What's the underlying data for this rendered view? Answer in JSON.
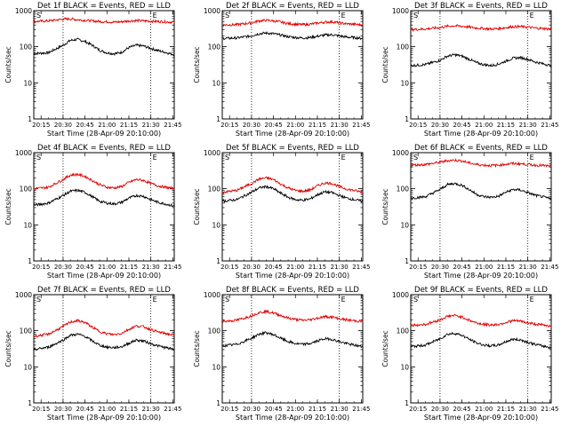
{
  "colors": {
    "events": "#000000",
    "lld": "#e00000",
    "axis": "#000000",
    "background": "#ffffff"
  },
  "chart_data": [
    {
      "type": "line",
      "title": "Det 1f BLACK = Events, RED = LLD",
      "xlabel": "Start Time (28-Apr-09 20:10:00)",
      "ylabel": "Counts/sec",
      "x_ticks": [
        "20:15",
        "20:30",
        "20:45",
        "21:00",
        "21:15",
        "21:30",
        "21:45"
      ],
      "x_range_minutes": [
        0,
        96
      ],
      "y_scale": "log",
      "ylim": [
        1,
        1000
      ],
      "y_ticks": [
        "1",
        "10",
        "100",
        "1000"
      ],
      "dotted_vlines_minutes": [
        20,
        80
      ],
      "corner_markers": [
        "S",
        "E"
      ],
      "x": [
        0,
        10,
        20,
        25,
        30,
        35,
        40,
        45,
        50,
        55,
        60,
        65,
        70,
        75,
        80,
        85,
        90,
        96
      ],
      "series": [
        {
          "name": "BLACK = Events",
          "color": "#000000",
          "values": [
            65,
            68,
            110,
            150,
            160,
            140,
            110,
            80,
            68,
            64,
            70,
            95,
            110,
            105,
            90,
            78,
            70,
            60
          ]
        },
        {
          "name": "RED = LLD",
          "color": "#e00000",
          "values": [
            500,
            520,
            580,
            590,
            560,
            540,
            520,
            500,
            490,
            480,
            490,
            520,
            530,
            520,
            510,
            500,
            490,
            480
          ]
        }
      ]
    },
    {
      "type": "line",
      "title": "Det 2f BLACK = Events, RED = LLD",
      "xlabel": "Start Time (28-Apr-09 20:10:00)",
      "ylabel": "Counts/sec",
      "x_ticks": [
        "20:15",
        "20:30",
        "20:45",
        "21:00",
        "21:15",
        "21:30",
        "21:45"
      ],
      "x_range_minutes": [
        0,
        96
      ],
      "y_scale": "log",
      "ylim": [
        1,
        1000
      ],
      "y_ticks": [
        "1",
        "10",
        "100",
        "1000"
      ],
      "dotted_vlines_minutes": [
        20,
        80
      ],
      "corner_markers": [
        "S",
        "E"
      ],
      "x": [
        0,
        10,
        20,
        25,
        30,
        35,
        40,
        45,
        50,
        55,
        60,
        65,
        70,
        75,
        80,
        85,
        90,
        96
      ],
      "series": [
        {
          "name": "BLACK = Events",
          "color": "#000000",
          "values": [
            170,
            175,
            200,
            230,
            240,
            230,
            210,
            190,
            180,
            175,
            180,
            195,
            210,
            215,
            200,
            185,
            180,
            170
          ]
        },
        {
          "name": "RED = LLD",
          "color": "#e00000",
          "values": [
            400,
            410,
            460,
            520,
            540,
            520,
            480,
            440,
            420,
            410,
            420,
            450,
            480,
            490,
            460,
            430,
            420,
            400
          ]
        }
      ]
    },
    {
      "type": "line",
      "title": "Det 3f BLACK = Events, RED = LLD",
      "xlabel": "Start Time (28-Apr-09 20:10:00)",
      "ylabel": "Counts/sec",
      "x_ticks": [
        "20:15",
        "20:30",
        "20:45",
        "21:00",
        "21:15",
        "21:30",
        "21:45"
      ],
      "x_range_minutes": [
        0,
        96
      ],
      "y_scale": "log",
      "ylim": [
        1,
        1000
      ],
      "y_ticks": [
        "1",
        "10",
        "100",
        "1000"
      ],
      "dotted_vlines_minutes": [
        20,
        80
      ],
      "corner_markers": [
        "S",
        "E"
      ],
      "x": [
        0,
        10,
        20,
        25,
        30,
        35,
        40,
        45,
        50,
        55,
        60,
        65,
        70,
        75,
        80,
        85,
        90,
        96
      ],
      "series": [
        {
          "name": "BLACK = Events",
          "color": "#000000",
          "values": [
            30,
            32,
            42,
            55,
            60,
            55,
            45,
            36,
            32,
            30,
            33,
            40,
            48,
            50,
            45,
            38,
            34,
            30
          ]
        },
        {
          "name": "RED = LLD",
          "color": "#e00000",
          "values": [
            300,
            310,
            340,
            370,
            380,
            370,
            350,
            330,
            320,
            310,
            320,
            340,
            360,
            360,
            350,
            330,
            320,
            310
          ]
        }
      ]
    },
    {
      "type": "line",
      "title": "Det 4f BLACK = Events, RED = LLD",
      "xlabel": "Start Time (28-Apr-09 20:10:00)",
      "ylabel": "Counts/sec",
      "x_ticks": [
        "20:15",
        "20:30",
        "20:45",
        "21:00",
        "21:15",
        "21:30",
        "21:45"
      ],
      "x_range_minutes": [
        0,
        96
      ],
      "y_scale": "log",
      "ylim": [
        1,
        1000
      ],
      "y_ticks": [
        "1",
        "10",
        "100",
        "1000"
      ],
      "dotted_vlines_minutes": [
        20,
        80
      ],
      "corner_markers": [
        "S",
        "E"
      ],
      "x": [
        0,
        10,
        20,
        25,
        30,
        35,
        40,
        45,
        50,
        55,
        60,
        65,
        70,
        75,
        80,
        85,
        90,
        96
      ],
      "series": [
        {
          "name": "BLACK = Events",
          "color": "#000000",
          "values": [
            35,
            40,
            65,
            85,
            90,
            80,
            60,
            45,
            40,
            38,
            42,
            55,
            65,
            62,
            50,
            42,
            38,
            33
          ]
        },
        {
          "name": "RED = LLD",
          "color": "#e00000",
          "values": [
            100,
            110,
            180,
            240,
            250,
            220,
            170,
            130,
            110,
            105,
            115,
            150,
            180,
            170,
            140,
            120,
            110,
            100
          ]
        }
      ]
    },
    {
      "type": "line",
      "title": "Det 5f BLACK = Events, RED = LLD",
      "xlabel": "Start Time (28-Apr-09 20:10:00)",
      "ylabel": "Counts/sec",
      "x_ticks": [
        "20:15",
        "20:30",
        "20:45",
        "21:00",
        "21:15",
        "21:30",
        "21:45"
      ],
      "x_range_minutes": [
        0,
        96
      ],
      "y_scale": "log",
      "ylim": [
        1,
        1000
      ],
      "y_ticks": [
        "1",
        "10",
        "100",
        "1000"
      ],
      "dotted_vlines_minutes": [
        20,
        80
      ],
      "corner_markers": [
        "S",
        "E"
      ],
      "x": [
        0,
        10,
        20,
        25,
        30,
        35,
        40,
        45,
        50,
        55,
        60,
        65,
        70,
        75,
        80,
        85,
        90,
        96
      ],
      "series": [
        {
          "name": "BLACK = Events",
          "color": "#000000",
          "values": [
            45,
            50,
            80,
            105,
            115,
            100,
            75,
            58,
            50,
            48,
            52,
            68,
            82,
            78,
            65,
            55,
            50,
            45
          ]
        },
        {
          "name": "RED = LLD",
          "color": "#e00000",
          "values": [
            80,
            90,
            140,
            185,
            200,
            180,
            135,
            105,
            90,
            85,
            92,
            120,
            145,
            140,
            115,
            98,
            90,
            80
          ]
        }
      ]
    },
    {
      "type": "line",
      "title": "Det 6f BLACK = Events, RED = LLD",
      "xlabel": "Start Time (28-Apr-09 20:10:00)",
      "ylabel": "Counts/sec",
      "x_ticks": [
        "20:15",
        "20:30",
        "20:45",
        "21:00",
        "21:15",
        "21:30",
        "21:45"
      ],
      "x_range_minutes": [
        0,
        96
      ],
      "y_scale": "log",
      "ylim": [
        1,
        1000
      ],
      "y_ticks": [
        "1",
        "10",
        "100",
        "1000"
      ],
      "dotted_vlines_minutes": [
        20,
        80
      ],
      "corner_markers": [
        "S",
        "E"
      ],
      "x": [
        0,
        10,
        20,
        25,
        30,
        35,
        40,
        45,
        50,
        55,
        60,
        65,
        70,
        75,
        80,
        85,
        90,
        96
      ],
      "series": [
        {
          "name": "BLACK = Events",
          "color": "#000000",
          "values": [
            55,
            60,
            95,
            130,
            140,
            125,
            95,
            70,
            60,
            58,
            62,
            80,
            95,
            92,
            78,
            66,
            60,
            52
          ]
        },
        {
          "name": "RED = LLD",
          "color": "#e00000",
          "values": [
            450,
            470,
            540,
            600,
            620,
            590,
            520,
            470,
            450,
            440,
            450,
            480,
            500,
            490,
            470,
            450,
            440,
            420
          ]
        }
      ]
    },
    {
      "type": "line",
      "title": "Det 7f BLACK = Events, RED = LLD",
      "xlabel": "Start Time (28-Apr-09 20:10:00)",
      "ylabel": "Counts/sec",
      "x_ticks": [
        "20:15",
        "20:30",
        "20:45",
        "21:00",
        "21:15",
        "21:30",
        "21:45"
      ],
      "x_range_minutes": [
        0,
        96
      ],
      "y_scale": "log",
      "ylim": [
        1,
        1000
      ],
      "y_ticks": [
        "1",
        "10",
        "100",
        "1000"
      ],
      "dotted_vlines_minutes": [
        20,
        80
      ],
      "corner_markers": [
        "S",
        "E"
      ],
      "x": [
        0,
        10,
        20,
        25,
        30,
        35,
        40,
        45,
        50,
        55,
        60,
        65,
        70,
        75,
        80,
        85,
        90,
        96
      ],
      "series": [
        {
          "name": "BLACK = Events",
          "color": "#000000",
          "values": [
            30,
            35,
            55,
            75,
            80,
            70,
            52,
            40,
            35,
            34,
            36,
            45,
            55,
            52,
            44,
            38,
            34,
            30
          ]
        },
        {
          "name": "RED = LLD",
          "color": "#e00000",
          "values": [
            70,
            80,
            130,
            175,
            190,
            170,
            125,
            95,
            82,
            78,
            85,
            110,
            135,
            130,
            108,
            92,
            84,
            75
          ]
        }
      ]
    },
    {
      "type": "line",
      "title": "Det 8f BLACK = Events, RED = LLD",
      "xlabel": "Start Time (28-Apr-09 20:10:00)",
      "ylabel": "Counts/sec",
      "x_ticks": [
        "20:15",
        "20:30",
        "20:45",
        "21:00",
        "21:15",
        "21:30",
        "21:45"
      ],
      "x_range_minutes": [
        0,
        96
      ],
      "y_scale": "log",
      "ylim": [
        1,
        1000
      ],
      "y_ticks": [
        "1",
        "10",
        "100",
        "1000"
      ],
      "dotted_vlines_minutes": [
        20,
        80
      ],
      "corner_markers": [
        "S",
        "E"
      ],
      "x": [
        0,
        10,
        20,
        25,
        30,
        35,
        40,
        45,
        50,
        55,
        60,
        65,
        70,
        75,
        80,
        85,
        90,
        96
      ],
      "series": [
        {
          "name": "BLACK = Events",
          "color": "#000000",
          "values": [
            38,
            42,
            62,
            80,
            88,
            78,
            62,
            50,
            44,
            42,
            44,
            52,
            60,
            58,
            50,
            44,
            40,
            36
          ]
        },
        {
          "name": "RED = LLD",
          "color": "#e00000",
          "values": [
            180,
            195,
            260,
            320,
            340,
            310,
            265,
            225,
            205,
            195,
            200,
            225,
            245,
            240,
            215,
            200,
            190,
            180
          ]
        }
      ]
    },
    {
      "type": "line",
      "title": "Det 9f BLACK = Events, RED = LLD",
      "xlabel": "Start Time (28-Apr-09 20:10:00)",
      "ylabel": "Counts/sec",
      "x_ticks": [
        "20:15",
        "20:30",
        "20:45",
        "21:00",
        "21:15",
        "21:30",
        "21:45"
      ],
      "x_range_minutes": [
        0,
        96
      ],
      "y_scale": "log",
      "ylim": [
        1,
        1000
      ],
      "y_ticks": [
        "1",
        "10",
        "100",
        "1000"
      ],
      "dotted_vlines_minutes": [
        20,
        80
      ],
      "corner_markers": [
        "S",
        "E"
      ],
      "x": [
        0,
        10,
        20,
        25,
        30,
        35,
        40,
        45,
        50,
        55,
        60,
        65,
        70,
        75,
        80,
        85,
        90,
        96
      ],
      "series": [
        {
          "name": "BLACK = Events",
          "color": "#000000",
          "values": [
            36,
            40,
            60,
            80,
            85,
            75,
            58,
            46,
            40,
            38,
            40,
            50,
            58,
            56,
            48,
            42,
            38,
            34
          ]
        },
        {
          "name": "RED = LLD",
          "color": "#e00000",
          "values": [
            140,
            150,
            200,
            250,
            265,
            240,
            195,
            165,
            150,
            145,
            150,
            170,
            190,
            185,
            165,
            152,
            145,
            135
          ]
        }
      ]
    }
  ]
}
